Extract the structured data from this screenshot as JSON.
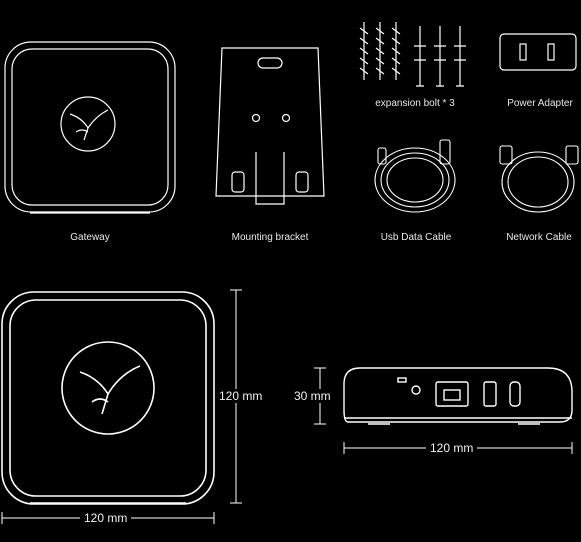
{
  "items": {
    "gateway": "Gateway",
    "mounting_bracket": "Mounting bracket",
    "expansion_bolt": "expansion bolt * 3",
    "power_adapter": "Power Adapter",
    "usb_cable": "Usb Data Cable",
    "network_cable": "Network Cable"
  },
  "dimensions": {
    "front_width": "120 mm",
    "front_height": "120 mm",
    "side_height": "30 mm",
    "side_width": "120 mm"
  },
  "colors": {
    "background": "#000000",
    "line": "#ffffff"
  }
}
